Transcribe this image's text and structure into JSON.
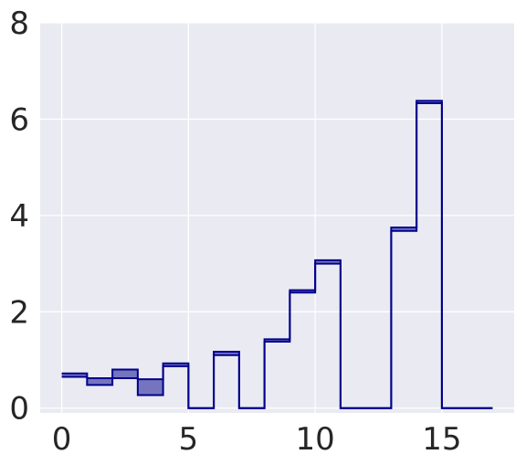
{
  "chart_data": {
    "type": "area",
    "style": "stepped fill_between (step=post) with upper and lower step outlines",
    "x": [
      0,
      1,
      2,
      3,
      4,
      5,
      6,
      7,
      8,
      9,
      10,
      11,
      12,
      13,
      14,
      15,
      16,
      17
    ],
    "series": [
      {
        "values": [
          0.72,
          0.62,
          0.8,
          0.6,
          0.93,
          0.0,
          1.17,
          0.0,
          1.43,
          2.45,
          3.07,
          0.0,
          0.0,
          3.75,
          6.38,
          0.0,
          0.0,
          0.0
        ]
      },
      {
        "values": [
          0.65,
          0.48,
          0.62,
          0.27,
          0.87,
          0.0,
          1.1,
          0.0,
          1.38,
          2.4,
          3.0,
          0.0,
          0.0,
          3.68,
          6.33,
          0.0,
          0.0,
          0.0
        ]
      }
    ],
    "xlim": [
      -0.85,
      17.85
    ],
    "ylim": [
      -0.1,
      8.0
    ],
    "xticks": [
      "0",
      "5",
      "10",
      "15"
    ],
    "yticks": [
      "0",
      "2",
      "4",
      "6",
      "8"
    ],
    "title": "",
    "xlabel": "",
    "ylabel": "",
    "grid": true,
    "colors": {
      "background": "#eaeaf2",
      "grid": "#ffffff",
      "line": "#00008b",
      "fill": "#00008b",
      "fill_opacity": 0.5,
      "text": "#262626"
    }
  }
}
